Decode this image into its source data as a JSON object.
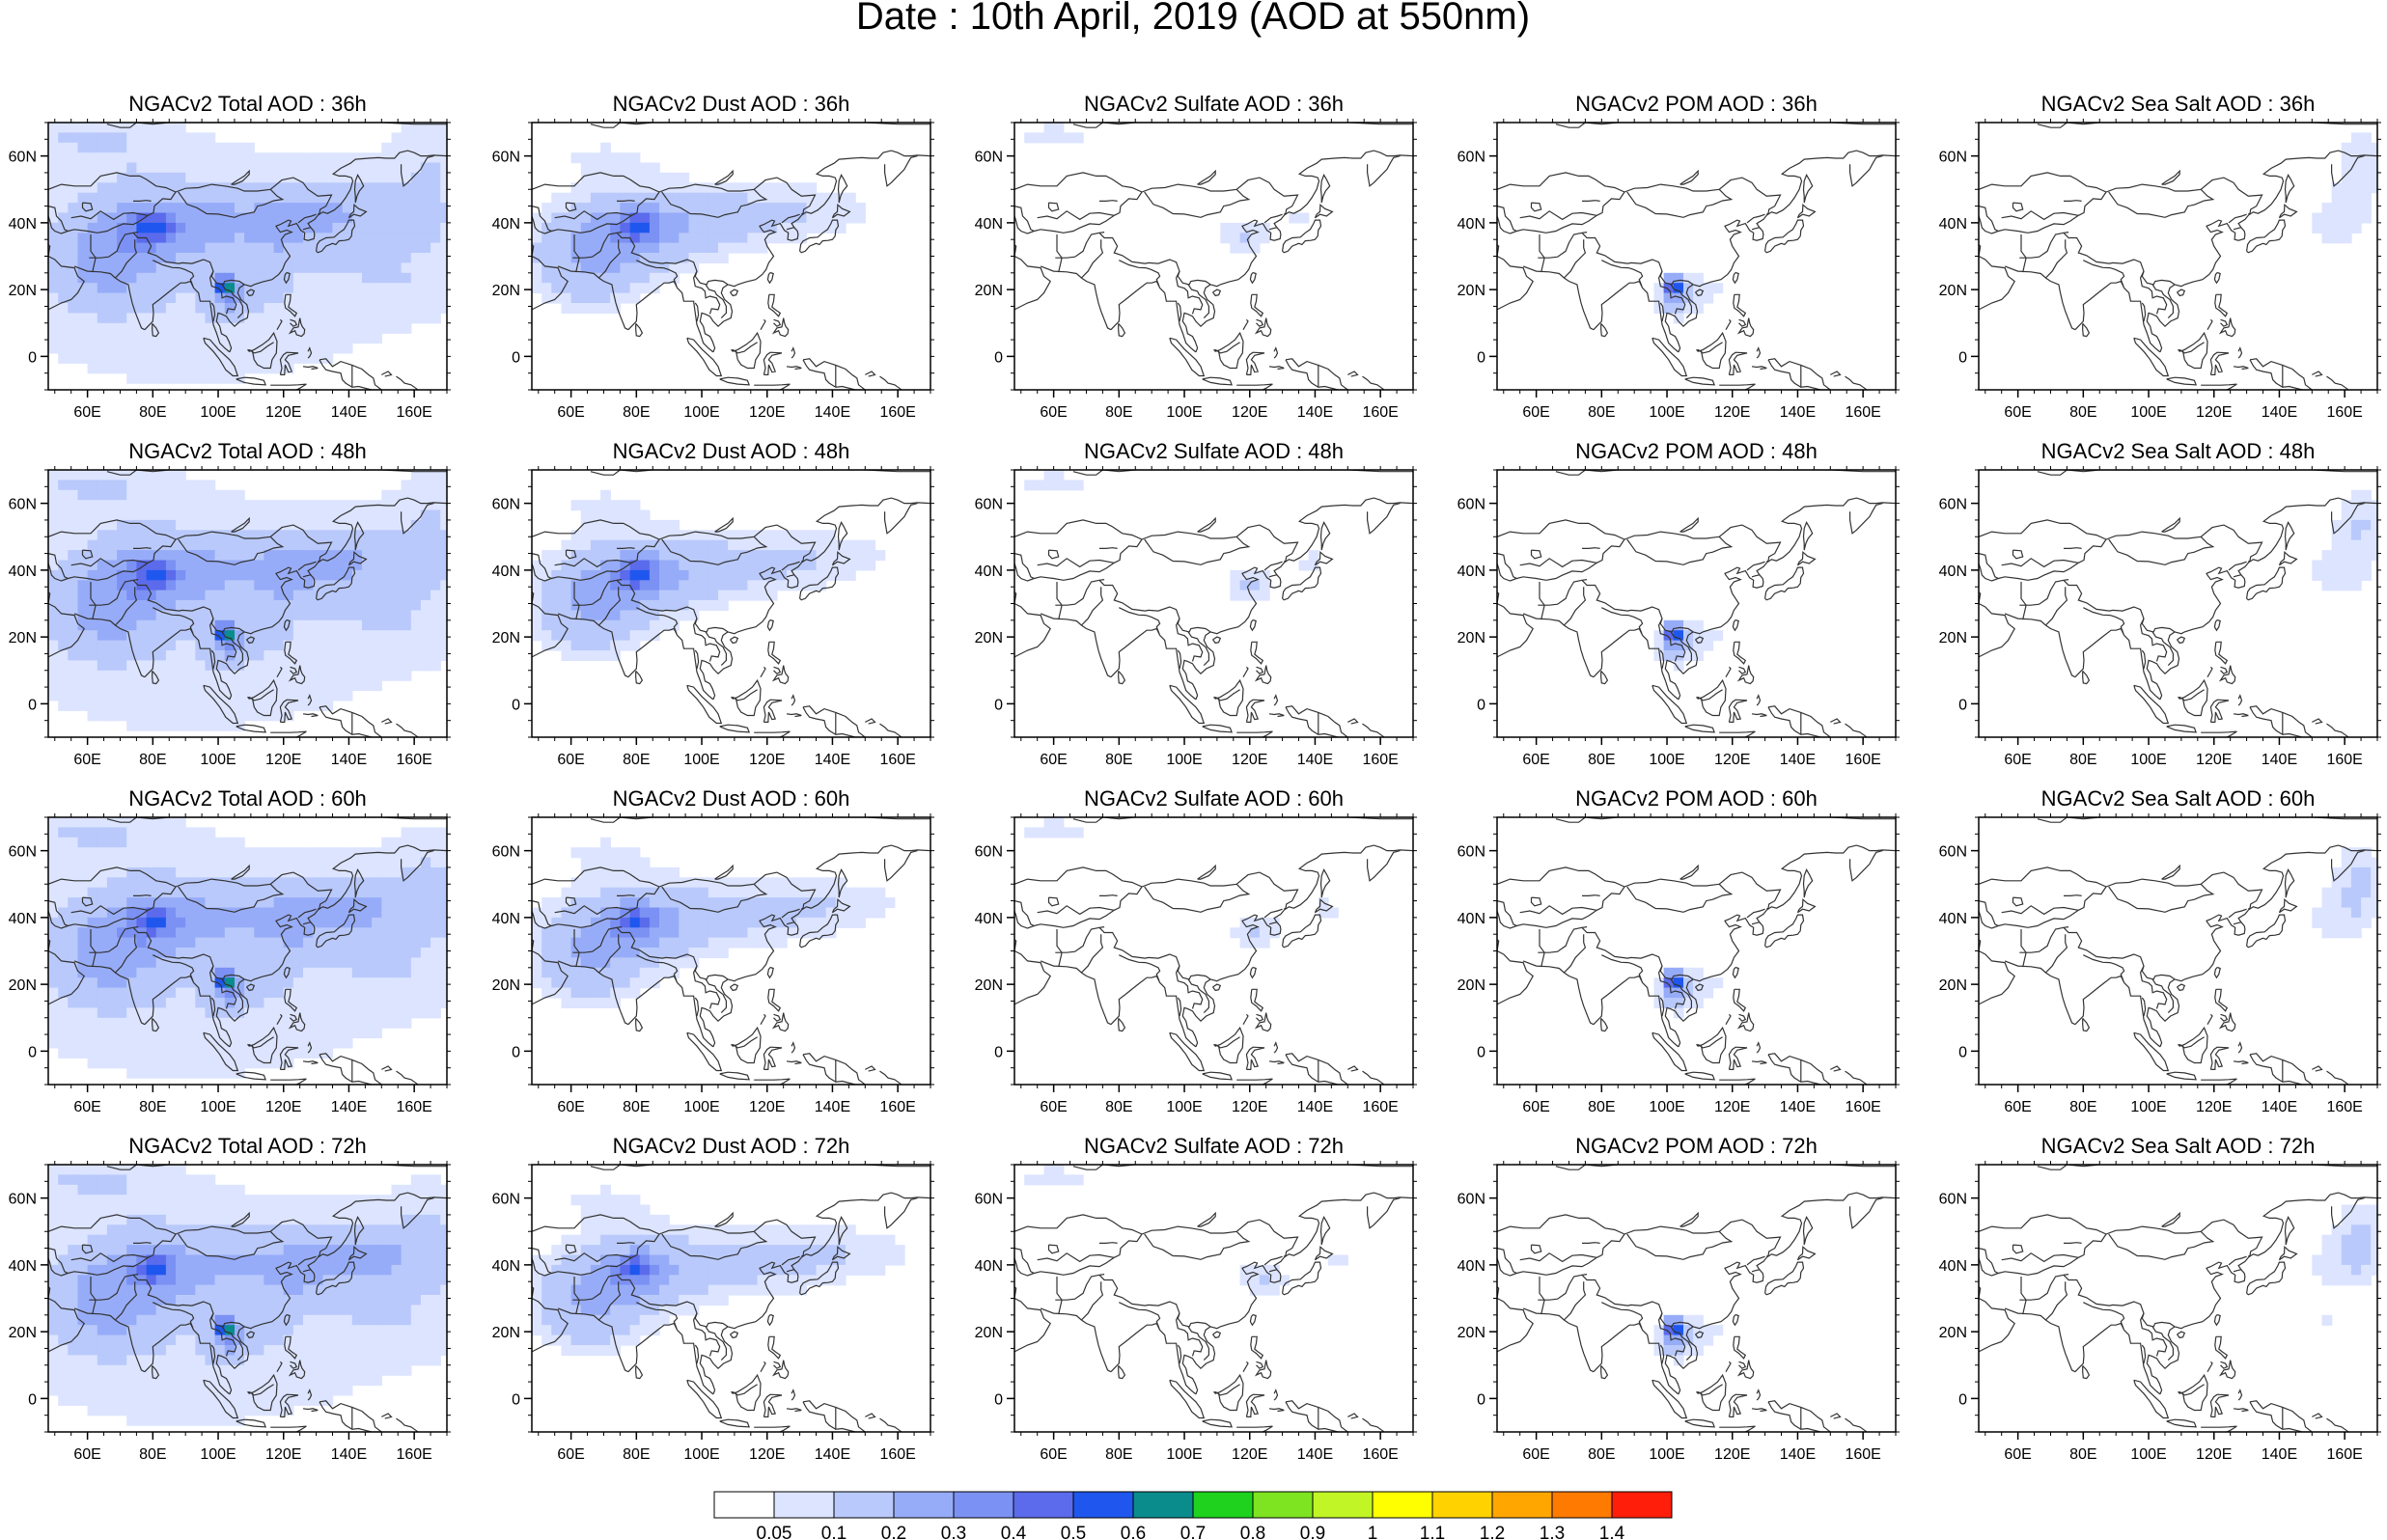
{
  "figure": {
    "title": "Date : 10th April, 2019 (AOD at 550nm)"
  },
  "axes": {
    "lon_ticks": [
      "60E",
      "80E",
      "100E",
      "120E",
      "140E",
      "160E"
    ],
    "lon_values": [
      60,
      80,
      100,
      120,
      140,
      160
    ],
    "lat_ticks": [
      "60N",
      "40N",
      "20N",
      "0"
    ],
    "lat_values": [
      60,
      40,
      20,
      0
    ],
    "lon_range": [
      48,
      170
    ],
    "lat_range": [
      -10,
      70
    ]
  },
  "panels": [
    {
      "title": "NGACv2 Total AOD : 36h",
      "species": "total"
    },
    {
      "title": "NGACv2 Dust AOD : 36h",
      "species": "dust"
    },
    {
      "title": "NGACv2 Sulfate AOD : 36h",
      "species": "sulfate"
    },
    {
      "title": "NGACv2 POM AOD : 36h",
      "species": "pom"
    },
    {
      "title": "NGACv2 Sea Salt AOD : 36h",
      "species": "seasalt"
    },
    {
      "title": "NGACv2 Total AOD : 48h",
      "species": "total"
    },
    {
      "title": "NGACv2 Dust AOD : 48h",
      "species": "dust"
    },
    {
      "title": "NGACv2 Sulfate AOD : 48h",
      "species": "sulfate"
    },
    {
      "title": "NGACv2 POM AOD : 48h",
      "species": "pom"
    },
    {
      "title": "NGACv2 Sea Salt AOD : 48h",
      "species": "seasalt"
    },
    {
      "title": "NGACv2 Total AOD : 60h",
      "species": "total"
    },
    {
      "title": "NGACv2 Dust AOD : 60h",
      "species": "dust"
    },
    {
      "title": "NGACv2 Sulfate AOD : 60h",
      "species": "sulfate"
    },
    {
      "title": "NGACv2 POM AOD : 60h",
      "species": "pom"
    },
    {
      "title": "NGACv2 Sea Salt AOD : 60h",
      "species": "seasalt"
    },
    {
      "title": "NGACv2 Total AOD : 72h",
      "species": "total"
    },
    {
      "title": "NGACv2 Dust AOD : 72h",
      "species": "dust"
    },
    {
      "title": "NGACv2 Sulfate AOD : 72h",
      "species": "sulfate"
    },
    {
      "title": "NGACv2 POM AOD : 72h",
      "species": "pom"
    },
    {
      "title": "NGACv2 Sea Salt  AOD : 72h",
      "species": "seasalt"
    }
  ],
  "colorbar": {
    "levels": [
      "0.05",
      "0.1",
      "0.2",
      "0.3",
      "0.4",
      "0.5",
      "0.6",
      "0.7",
      "0.8",
      "0.9",
      "1",
      "1.1",
      "1.2",
      "1.3",
      "1.4"
    ],
    "colors": [
      "#ffffff",
      "#dce4ff",
      "#b9c9fb",
      "#97acf8",
      "#7b91f3",
      "#5b6bec",
      "#1f57ee",
      "#0b8c8c",
      "#1ed21e",
      "#7ee321",
      "#c2f526",
      "#ffff00",
      "#ffd200",
      "#ffa600",
      "#ff7a00",
      "#ff1e0a"
    ]
  }
}
